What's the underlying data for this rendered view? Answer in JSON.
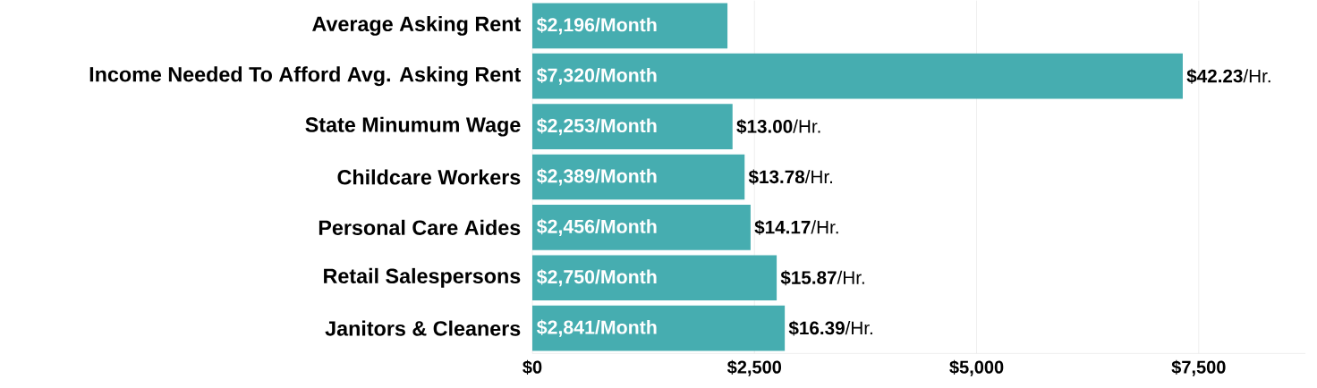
{
  "chart_data": {
    "type": "bar",
    "orientation": "horizontal",
    "categories": [
      "Average Asking Rent",
      "Income Needed To Afford Avg. Asking Rent",
      "State Minumum Wage",
      "Childcare Workers",
      "Personal Care Aides",
      "Retail Salespersons",
      "Janitors & Cleaners"
    ],
    "values": [
      2196,
      7320,
      2253,
      2389,
      2456,
      2750,
      2841
    ],
    "value_labels": [
      "$2,196/Month",
      "$7,320/Month",
      "$2,253/Month",
      "$2,389/Month",
      "$2,456/Month",
      "$2,750/Month",
      "$2,841/Month"
    ],
    "color": "#46adb0",
    "xlim": [
      0,
      8700
    ],
    "xticks": [
      {
        "value": 0,
        "label": "$0"
      },
      {
        "value": 2500,
        "label": "$2,500"
      },
      {
        "value": 5000,
        "label": "$5,000"
      },
      {
        "value": 7500,
        "label": "$7,500"
      }
    ],
    "grid": "x",
    "annotations": [
      {
        "text": "**$42.23**/Hr.",
        "x": 7320,
        "y": "Income Needed To Afford Avg. Asking Rent"
      },
      {
        "text": "**$13.00**/Hr.",
        "x": 2253,
        "y": "State Minumum Wage"
      },
      {
        "text": "**$13.78**/Hr.",
        "x": 2389,
        "y": "Childcare Workers"
      },
      {
        "text": "**$14.17**/Hr.",
        "x": 2456,
        "y": "Personal Care Aides"
      },
      {
        "text": "**$15.87**/Hr.",
        "x": 2750,
        "y": "Retail Salespersons"
      },
      {
        "text": "**$16.39**/Hr.",
        "x": 2841,
        "y": "Janitors & Cleaners"
      }
    ]
  }
}
